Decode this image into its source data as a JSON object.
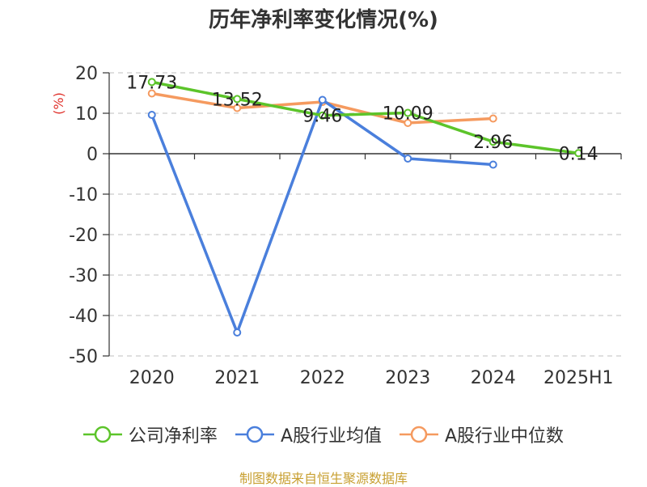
{
  "title": "历年净利率变化情况(%)",
  "source_note": "制图数据来自恒生聚源数据库",
  "colors": {
    "company": "#5cc42a",
    "industry_avg": "#4a7fdc",
    "industry_median": "#f59a5f",
    "axis": "#333333",
    "grid": "#cccccc",
    "unit": "#e0312b",
    "source": "#c8a032"
  },
  "chart_data": {
    "type": "line",
    "title": "历年净利率变化情况(%)",
    "ylabel": "(%)",
    "xlabel": "",
    "ylim": [
      -50,
      20
    ],
    "yticks": [
      20,
      10,
      0,
      -10,
      -20,
      -30,
      -40,
      -50
    ],
    "grid": true,
    "legend": "bottom",
    "categories": [
      "2020",
      "2021",
      "2022",
      "2023",
      "2024",
      "2025H1"
    ],
    "series": [
      {
        "name": "公司净利率",
        "color": "#5cc42a",
        "values": [
          17.73,
          13.52,
          9.46,
          10.09,
          2.96,
          0.14
        ],
        "labels": [
          "17.73",
          "13.52",
          "9.46",
          "10.09",
          "2.96",
          "0.14"
        ]
      },
      {
        "name": "A股行业均值",
        "color": "#4a7fdc",
        "values": [
          9.6,
          -44.2,
          13.3,
          -1.2,
          -2.7,
          null
        ]
      },
      {
        "name": "A股行业中位数",
        "color": "#f59a5f",
        "values": [
          14.9,
          11.3,
          12.8,
          7.6,
          8.7,
          null
        ]
      }
    ]
  }
}
